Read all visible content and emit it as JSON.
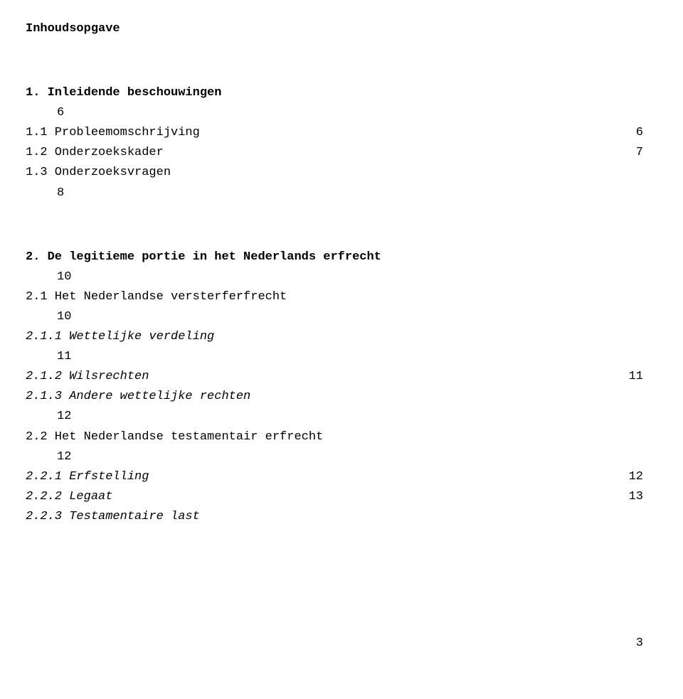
{
  "title": "Inhoudsopgave",
  "sections": {
    "s1": {
      "label": "1. Inleidende beschouwingen",
      "page": "6"
    },
    "s1_1": {
      "label": "1.1 Probleemomschrijving",
      "page": "6"
    },
    "s1_2": {
      "label": "1.2 Onderzoekskader",
      "page": "7"
    },
    "s1_3": {
      "label": "1.3 Onderzoeksvragen",
      "page": "8"
    },
    "s2": {
      "label": "2. De legitieme portie in het Nederlands erfrecht",
      "page": "10"
    },
    "s2_1": {
      "label": "2.1 Het Nederlandse versterferfrecht",
      "page": "10"
    },
    "s2_1_1": {
      "label": "2.1.1 Wettelijke verdeling",
      "page": "11"
    },
    "s2_1_2": {
      "label": "2.1.2 Wilsrechten",
      "page": "11"
    },
    "s2_1_3": {
      "label": "2.1.3 Andere wettelijke rechten",
      "page": "12"
    },
    "s2_2": {
      "label": "2.2 Het Nederlandse testamentair erfrecht",
      "page": "12"
    },
    "s2_2_1": {
      "label": "2.2.1 Erfstelling",
      "page": "12"
    },
    "s2_2_2": {
      "label": "2.2.2 Legaat",
      "page": "13"
    },
    "s2_2_3": {
      "label": "2.2.3 Testamentaire last"
    }
  },
  "footer_page": "3",
  "colors": {
    "text": "#000000",
    "background": "#ffffff"
  },
  "typography": {
    "family": "Courier New (monospace)",
    "size_pt": 13,
    "title_weight": "700"
  }
}
